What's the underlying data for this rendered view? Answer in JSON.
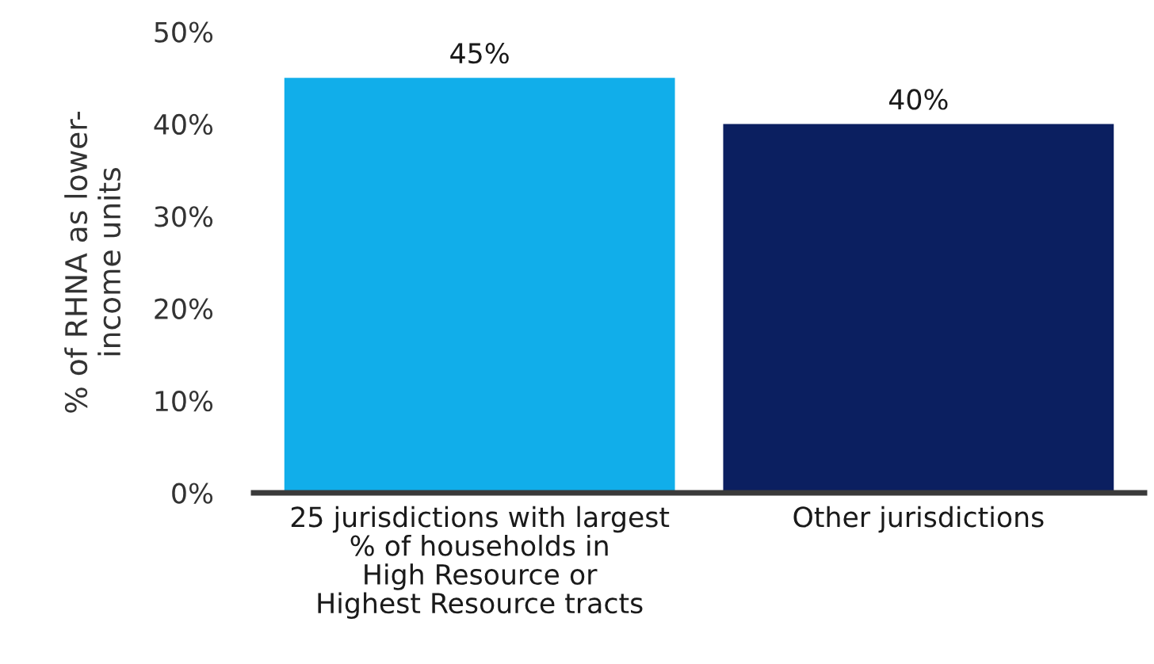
{
  "chart_data": {
    "type": "bar",
    "ylabel": "% of RHNA as lower-\nincome units",
    "categories": [
      "25 jurisdictions with largest\n% of households in\nHigh Resource or\nHighest Resource tracts",
      "Other jurisdictions"
    ],
    "values": [
      45,
      40
    ],
    "colors": [
      "#11aeea",
      "#0b1f60"
    ],
    "value_labels": [
      "45%",
      "40%"
    ],
    "ylim": [
      0,
      50
    ],
    "yticks": [
      {
        "value": 0,
        "label": "0%"
      },
      {
        "value": 10,
        "label": "10%"
      },
      {
        "value": 20,
        "label": "20%"
      },
      {
        "value": 30,
        "label": "30%"
      },
      {
        "value": 40,
        "label": "40%"
      },
      {
        "value": 50,
        "label": "50%"
      }
    ],
    "grid": false,
    "legend": false
  }
}
